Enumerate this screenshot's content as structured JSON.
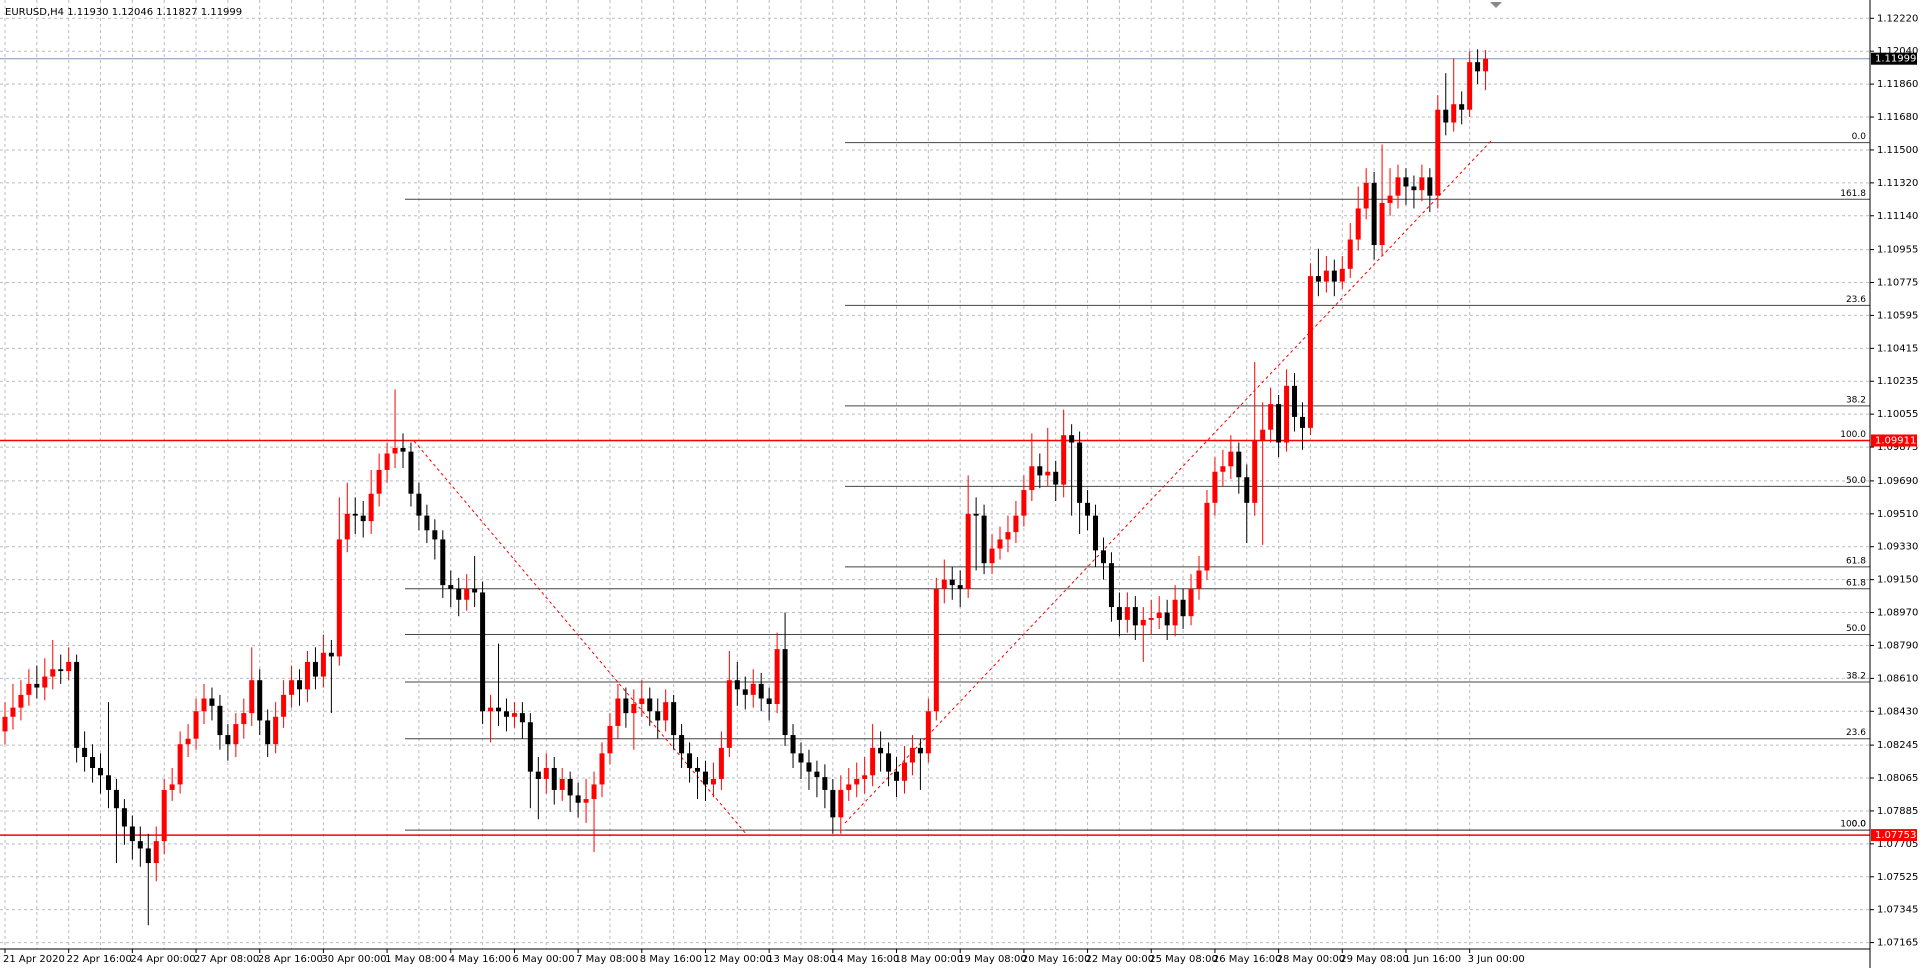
{
  "chart_data": {
    "type": "candlestick",
    "title": "EURUSD,H4  1.11930 1.12046 1.11827 1.11999",
    "bull_color": "#ff0000",
    "bear_color": "#000000",
    "categories": [
      "21 Apr 2020",
      null,
      null,
      null,
      null,
      null,
      null,
      null,
      "22 Apr 16:00",
      null,
      null,
      null,
      null,
      null,
      null,
      null,
      "24 Apr 00:00",
      null,
      null,
      null,
      null,
      null,
      null,
      null,
      "27 Apr 08:00",
      null,
      null,
      null,
      null,
      null,
      null,
      null,
      "28 Apr 16:00",
      null,
      null,
      null,
      null,
      null,
      null,
      null,
      "30 Apr 00:00",
      null,
      null,
      null,
      null,
      null,
      null,
      null,
      "1 May 08:00",
      null,
      null,
      null,
      null,
      null,
      null,
      null,
      "4 May 16:00",
      null,
      null,
      null,
      null,
      null,
      null,
      null,
      "6 May 00:00",
      null,
      null,
      null,
      null,
      null,
      null,
      null,
      "7 May 08:00",
      null,
      null,
      null,
      null,
      null,
      null,
      null,
      "8 May 16:00",
      null,
      null,
      null,
      null,
      null,
      null,
      null,
      "12 May 00:00",
      null,
      null,
      null,
      null,
      null,
      null,
      null,
      "13 May 08:00",
      null,
      null,
      null,
      null,
      null,
      null,
      null,
      "14 May 16:00",
      null,
      null,
      null,
      null,
      null,
      null,
      null,
      "18 May 00:00",
      null,
      null,
      null,
      null,
      null,
      null,
      null,
      "19 May 08:00",
      null,
      null,
      null,
      null,
      null,
      null,
      null,
      "20 May 16:00",
      null,
      null,
      null,
      null,
      null,
      null,
      null,
      "22 May 00:00",
      null,
      null,
      null,
      null,
      null,
      null,
      null,
      "25 May 08:00",
      null,
      null,
      null,
      null,
      null,
      null,
      null,
      "26 May 16:00",
      null,
      null,
      null,
      null,
      null,
      null,
      null,
      "28 May 00:00",
      null,
      null,
      null,
      null,
      null,
      null,
      null,
      "29 May 08:00",
      null,
      null,
      null,
      null,
      null,
      null,
      null,
      "1 Jun 16:00",
      null,
      null,
      null,
      null,
      null,
      null,
      null,
      "3 Jun 00:00",
      null,
      null
    ],
    "open": [
      1.0832,
      1.084,
      1.0845,
      1.0852,
      1.0858,
      1.0856,
      1.0862,
      1.0866,
      1.0865,
      1.087,
      1.0823,
      1.0818,
      1.0812,
      1.0808,
      1.08,
      1.079,
      1.078,
      1.0772,
      1.0768,
      1.076,
      1.0772,
      1.08,
      1.0803,
      1.0825,
      1.0828,
      1.0843,
      1.085,
      1.0846,
      1.083,
      1.0825,
      1.0836,
      1.0842,
      1.086,
      1.0838,
      1.0825,
      1.084,
      1.0852,
      1.086,
      1.0855,
      1.087,
      1.0862,
      1.0875,
      1.0873,
      1.0937,
      1.0951,
      1.095,
      1.0947,
      1.0962,
      1.0975,
      1.0984,
      1.0987,
      1.0985,
      1.0962,
      1.095,
      1.0942,
      1.0937,
      1.0912,
      1.091,
      1.0904,
      1.091,
      1.0908,
      1.0843,
      1.0845,
      1.0843,
      1.084,
      1.0842,
      1.0837,
      1.081,
      1.0806,
      1.0812,
      1.08,
      1.0806,
      1.0797,
      1.0793,
      1.0795,
      1.0803,
      1.082,
      1.0835,
      1.085,
      1.0842,
      1.0847,
      1.085,
      1.0843,
      1.0838,
      1.0848,
      1.083,
      1.082,
      1.0812,
      1.081,
      1.0803,
      1.0806,
      1.0823,
      1.086,
      1.0855,
      1.0852,
      1.0858,
      1.085,
      1.0847,
      1.0877,
      1.083,
      1.082,
      1.0815,
      1.081,
      1.0807,
      1.08,
      1.0785,
      1.08,
      1.0803,
      1.0806,
      1.0808,
      1.0823,
      1.082,
      1.081,
      1.0805,
      1.0815,
      1.0823,
      1.082,
      1.0843,
      1.091,
      1.0915,
      1.0912,
      1.091,
      1.0951,
      1.095,
      1.0924,
      1.0932,
      1.0937,
      1.0941,
      1.095,
      1.0964,
      1.0977,
      1.0972,
      1.0974,
      1.0967,
      1.0994,
      1.099,
      1.0957,
      1.095,
      1.0931,
      1.0924,
      1.09,
      1.0893,
      1.09,
      1.089,
      1.0893,
      1.0894,
      1.0897,
      1.089,
      1.0904,
      1.0895,
      1.091,
      1.092,
      1.0957,
      1.0974,
      1.0977,
      1.0985,
      1.0971,
      1.0957,
      1.0991,
      1.0997,
      1.1011,
      1.099,
      1.1021,
      1.1004,
      1.0998,
      1.1081,
      1.1078,
      1.1084,
      1.1078,
      1.1085,
      1.1101,
      1.1118,
      1.1132,
      1.1098,
      1.1121,
      1.1125,
      1.1135,
      1.113,
      1.1128,
      1.1135,
      1.1125,
      1.1172,
      1.1165,
      1.1175,
      1.1172,
      1.1198,
      1.1193
    ],
    "high": [
      1.0848,
      1.0858,
      1.086,
      1.0866,
      1.0868,
      1.0872,
      1.0882,
      1.0874,
      1.0878,
      1.0874,
      1.0832,
      1.0825,
      1.082,
      1.0848,
      1.0806,
      1.0795,
      1.0786,
      1.078,
      1.0776,
      1.078,
      1.0806,
      1.0812,
      1.0832,
      1.0836,
      1.085,
      1.0858,
      1.0856,
      1.0852,
      1.0836,
      1.0842,
      1.085,
      1.0878,
      1.0866,
      1.0844,
      1.0848,
      1.086,
      1.0868,
      1.0866,
      1.0876,
      1.0878,
      1.0885,
      1.0882,
      1.096,
      1.0968,
      1.096,
      1.0958,
      1.0975,
      1.0984,
      1.099,
      1.1019,
      1.0995,
      1.099,
      1.0968,
      1.0956,
      1.0948,
      1.0942,
      1.092,
      1.0916,
      1.0918,
      1.0928,
      1.0914,
      1.0852,
      1.088,
      1.085,
      1.0848,
      1.0848,
      1.0842,
      1.0818,
      1.082,
      1.0818,
      1.0812,
      1.081,
      1.0804,
      1.0806,
      1.081,
      1.0826,
      1.0842,
      1.0858,
      1.0856,
      1.0855,
      1.086,
      1.0856,
      1.085,
      1.0855,
      1.0852,
      1.0836,
      1.0826,
      1.0818,
      1.0816,
      1.0815,
      1.0832,
      1.0876,
      1.087,
      1.0862,
      1.0866,
      1.0864,
      1.0856,
      1.0886,
      1.0897,
      1.0836,
      1.0826,
      1.0822,
      1.0816,
      1.0814,
      1.0806,
      1.0808,
      1.0812,
      1.0815,
      1.0818,
      1.0836,
      1.0832,
      1.0826,
      1.0818,
      1.0824,
      1.083,
      1.0828,
      1.085,
      1.0916,
      1.0926,
      1.0922,
      1.092,
      1.0972,
      1.096,
      1.0956,
      1.094,
      1.0944,
      1.095,
      1.0958,
      1.0972,
      1.0995,
      1.0984,
      1.0998,
      1.098,
      1.1008,
      1.1,
      1.0996,
      1.0964,
      1.0956,
      1.0938,
      1.093,
      1.0908,
      1.0908,
      1.0906,
      1.09,
      1.0904,
      1.0906,
      1.0904,
      1.0912,
      1.091,
      1.0918,
      1.0928,
      1.0964,
      1.0982,
      1.0986,
      1.0994,
      1.099,
      1.0978,
      1.1034,
      1.1012,
      1.102,
      1.1016,
      1.103,
      1.1028,
      1.1012,
      1.1088,
      1.1096,
      1.1092,
      1.109,
      1.1092,
      1.111,
      1.113,
      1.114,
      1.1138,
      1.1153,
      1.114,
      1.1142,
      1.114,
      1.1136,
      1.1142,
      1.114,
      1.118,
      1.1192,
      1.12,
      1.1182,
      1.1204,
      1.1205,
      1.12046
    ],
    "low": [
      1.0825,
      1.0833,
      1.0838,
      1.0846,
      1.085,
      1.0849,
      1.0855,
      1.0858,
      1.086,
      1.0815,
      1.081,
      1.0804,
      1.0798,
      1.079,
      1.076,
      1.077,
      1.0762,
      1.0758,
      1.0726,
      1.075,
      1.0765,
      1.0794,
      1.0798,
      1.0818,
      1.0822,
      1.0836,
      1.0838,
      1.0822,
      1.0816,
      1.0818,
      1.0828,
      1.0835,
      1.083,
      1.0818,
      1.082,
      1.0834,
      1.0845,
      1.0846,
      1.0848,
      1.0855,
      1.0856,
      1.0842,
      1.0868,
      1.093,
      1.094,
      1.0938,
      1.094,
      1.0955,
      1.0968,
      1.0976,
      1.0976,
      1.0955,
      1.0942,
      1.0935,
      1.0926,
      1.0905,
      1.09,
      1.0895,
      1.0898,
      1.09,
      1.0836,
      1.0826,
      1.0835,
      1.0832,
      1.0834,
      1.0828,
      1.079,
      1.0784,
      1.0798,
      1.0792,
      1.0794,
      1.0788,
      1.0785,
      1.0782,
      1.0766,
      1.0796,
      1.0814,
      1.0828,
      1.0834,
      1.0822,
      1.084,
      1.0835,
      1.0828,
      1.0832,
      1.0822,
      1.0812,
      1.0804,
      1.0795,
      1.0794,
      1.0796,
      1.08,
      1.0818,
      1.0846,
      1.0844,
      1.0845,
      1.0843,
      1.0838,
      1.0842,
      1.0824,
      1.0812,
      1.0806,
      1.08,
      1.0796,
      1.079,
      1.0776,
      1.0776,
      1.0794,
      1.0796,
      1.0798,
      1.0802,
      1.081,
      1.0802,
      1.0796,
      1.0798,
      1.0808,
      1.08,
      1.0815,
      1.0838,
      1.0902,
      1.0904,
      1.09,
      1.0905,
      1.092,
      1.0918,
      1.0918,
      1.0926,
      1.093,
      1.0935,
      1.0944,
      1.0958,
      1.0965,
      1.0966,
      1.0958,
      1.096,
      1.095,
      1.094,
      1.0942,
      1.0922,
      1.0915,
      1.0892,
      1.0884,
      1.0886,
      1.0882,
      1.087,
      1.0885,
      1.0888,
      1.0882,
      1.0884,
      1.0888,
      1.089,
      1.0904,
      1.0915,
      1.095,
      1.0966,
      1.097,
      1.0962,
      1.0935,
      1.095,
      1.0934,
      1.099,
      1.0982,
      1.0985,
      1.0996,
      1.0986,
      1.0994,
      1.107,
      1.1072,
      1.107,
      1.1074,
      1.108,
      1.1095,
      1.1112,
      1.109,
      1.1092,
      1.1114,
      1.1118,
      1.112,
      1.1118,
      1.1122,
      1.1116,
      1.1118,
      1.1158,
      1.116,
      1.1164,
      1.1168,
      1.1186,
      1.11827
    ],
    "close": [
      1.084,
      1.0845,
      1.0852,
      1.0858,
      1.0856,
      1.0862,
      1.0866,
      1.0865,
      1.087,
      1.0823,
      1.0818,
      1.0812,
      1.0808,
      1.08,
      1.079,
      1.078,
      1.0772,
      1.0768,
      1.076,
      1.0772,
      1.08,
      1.0803,
      1.0825,
      1.0828,
      1.0843,
      1.085,
      1.0846,
      1.083,
      1.0825,
      1.0836,
      1.0842,
      1.086,
      1.0838,
      1.0825,
      1.084,
      1.0852,
      1.086,
      1.0855,
      1.087,
      1.0862,
      1.0875,
      1.0873,
      1.0937,
      1.0951,
      1.095,
      1.0947,
      1.0962,
      1.0975,
      1.0984,
      1.0987,
      1.0985,
      1.0962,
      1.095,
      1.0942,
      1.0937,
      1.0912,
      1.091,
      1.0904,
      1.091,
      1.0908,
      1.0843,
      1.0845,
      1.0843,
      1.084,
      1.0842,
      1.0837,
      1.081,
      1.0806,
      1.0812,
      1.08,
      1.0806,
      1.0797,
      1.0793,
      1.0795,
      1.0803,
      1.082,
      1.0835,
      1.085,
      1.0842,
      1.0847,
      1.085,
      1.0843,
      1.0838,
      1.0848,
      1.083,
      1.082,
      1.0812,
      1.081,
      1.0803,
      1.0806,
      1.0823,
      1.086,
      1.0855,
      1.0852,
      1.0858,
      1.085,
      1.0847,
      1.0877,
      1.083,
      1.082,
      1.0815,
      1.081,
      1.0807,
      1.08,
      1.0785,
      1.08,
      1.0803,
      1.0806,
      1.0808,
      1.0823,
      1.082,
      1.081,
      1.0805,
      1.0815,
      1.0823,
      1.082,
      1.0843,
      1.091,
      1.0915,
      1.0912,
      1.091,
      1.0951,
      1.095,
      1.0924,
      1.0932,
      1.0937,
      1.0941,
      1.095,
      1.0964,
      1.0977,
      1.0972,
      1.0974,
      1.0967,
      1.0994,
      1.099,
      1.0957,
      1.095,
      1.0931,
      1.0924,
      1.09,
      1.0893,
      1.09,
      1.089,
      1.0893,
      1.0894,
      1.0897,
      1.089,
      1.0904,
      1.0895,
      1.091,
      1.092,
      1.0957,
      1.0974,
      1.0977,
      1.0985,
      1.0971,
      1.0957,
      1.0991,
      1.0997,
      1.1011,
      1.099,
      1.1021,
      1.1004,
      1.0998,
      1.1081,
      1.1078,
      1.1084,
      1.1078,
      1.1085,
      1.1101,
      1.1118,
      1.1132,
      1.1098,
      1.1121,
      1.1125,
      1.1135,
      1.113,
      1.1128,
      1.1135,
      1.1125,
      1.1172,
      1.1165,
      1.1175,
      1.1172,
      1.1198,
      1.1193,
      1.11999
    ],
    "ylim": [
      1.0713,
      1.1232
    ],
    "yticks": [
      {
        "value": 1.1222,
        "label": "1.12220"
      },
      {
        "value": 1.1204,
        "label": "1.12040"
      },
      {
        "value": 1.1186,
        "label": "1.11860"
      },
      {
        "value": 1.1168,
        "label": "1.11680"
      },
      {
        "value": 1.115,
        "label": "1.11500"
      },
      {
        "value": 1.1132,
        "label": "1.11320"
      },
      {
        "value": 1.1114,
        "label": "1.11140"
      },
      1.10955,
      1.10775,
      1.10595,
      1.10415,
      1.10235,
      1.10055,
      1.09875,
      {
        "value": 1.0969,
        "label": "1.09690"
      },
      {
        "value": 1.0951,
        "label": "1.09510"
      },
      {
        "value": 1.0933,
        "label": "1.09330"
      },
      {
        "value": 1.0915,
        "label": "1.09150"
      },
      {
        "value": 1.0897,
        "label": "1.08970"
      },
      {
        "value": 1.0879,
        "label": "1.08790"
      },
      {
        "value": 1.0861,
        "label": "1.08610"
      },
      {
        "value": 1.0843,
        "label": "1.08430"
      },
      1.08245,
      1.08065,
      1.07885,
      1.07705,
      1.07525,
      1.07345,
      1.07165
    ],
    "grid": true,
    "hlines": [
      {
        "value": 1.09911,
        "color": "#ff0000"
      },
      {
        "value": 1.07753,
        "color": "#ff0000"
      }
    ],
    "last_price": {
      "value": 1.11999,
      "color": "#7f93b5"
    },
    "fibonacci": [
      {
        "levels": [
          {
            "value": 1.1123,
            "label": "161.8"
          },
          {
            "value": 1.0991,
            "label": "100.0"
          },
          {
            "value": 1.091,
            "label": "61.8"
          },
          {
            "value": 1.0885,
            "label": "50.0"
          },
          {
            "value": 1.0859,
            "label": "38.2"
          },
          {
            "value": 1.0828,
            "label": "23.6"
          },
          {
            "value": 1.0778,
            "label": "0.0"
          }
        ]
      },
      {
        "levels": [
          {
            "value": 1.1154,
            "label": "0.0"
          },
          {
            "value": 1.1065,
            "label": "23.6"
          },
          {
            "value": 1.101,
            "label": "38.2"
          },
          {
            "value": 1.0966,
            "label": "50.0"
          },
          {
            "value": 1.0922,
            "label": "61.8"
          },
          {
            "value": 1.0778,
            "label": "100.0"
          }
        ]
      }
    ]
  }
}
